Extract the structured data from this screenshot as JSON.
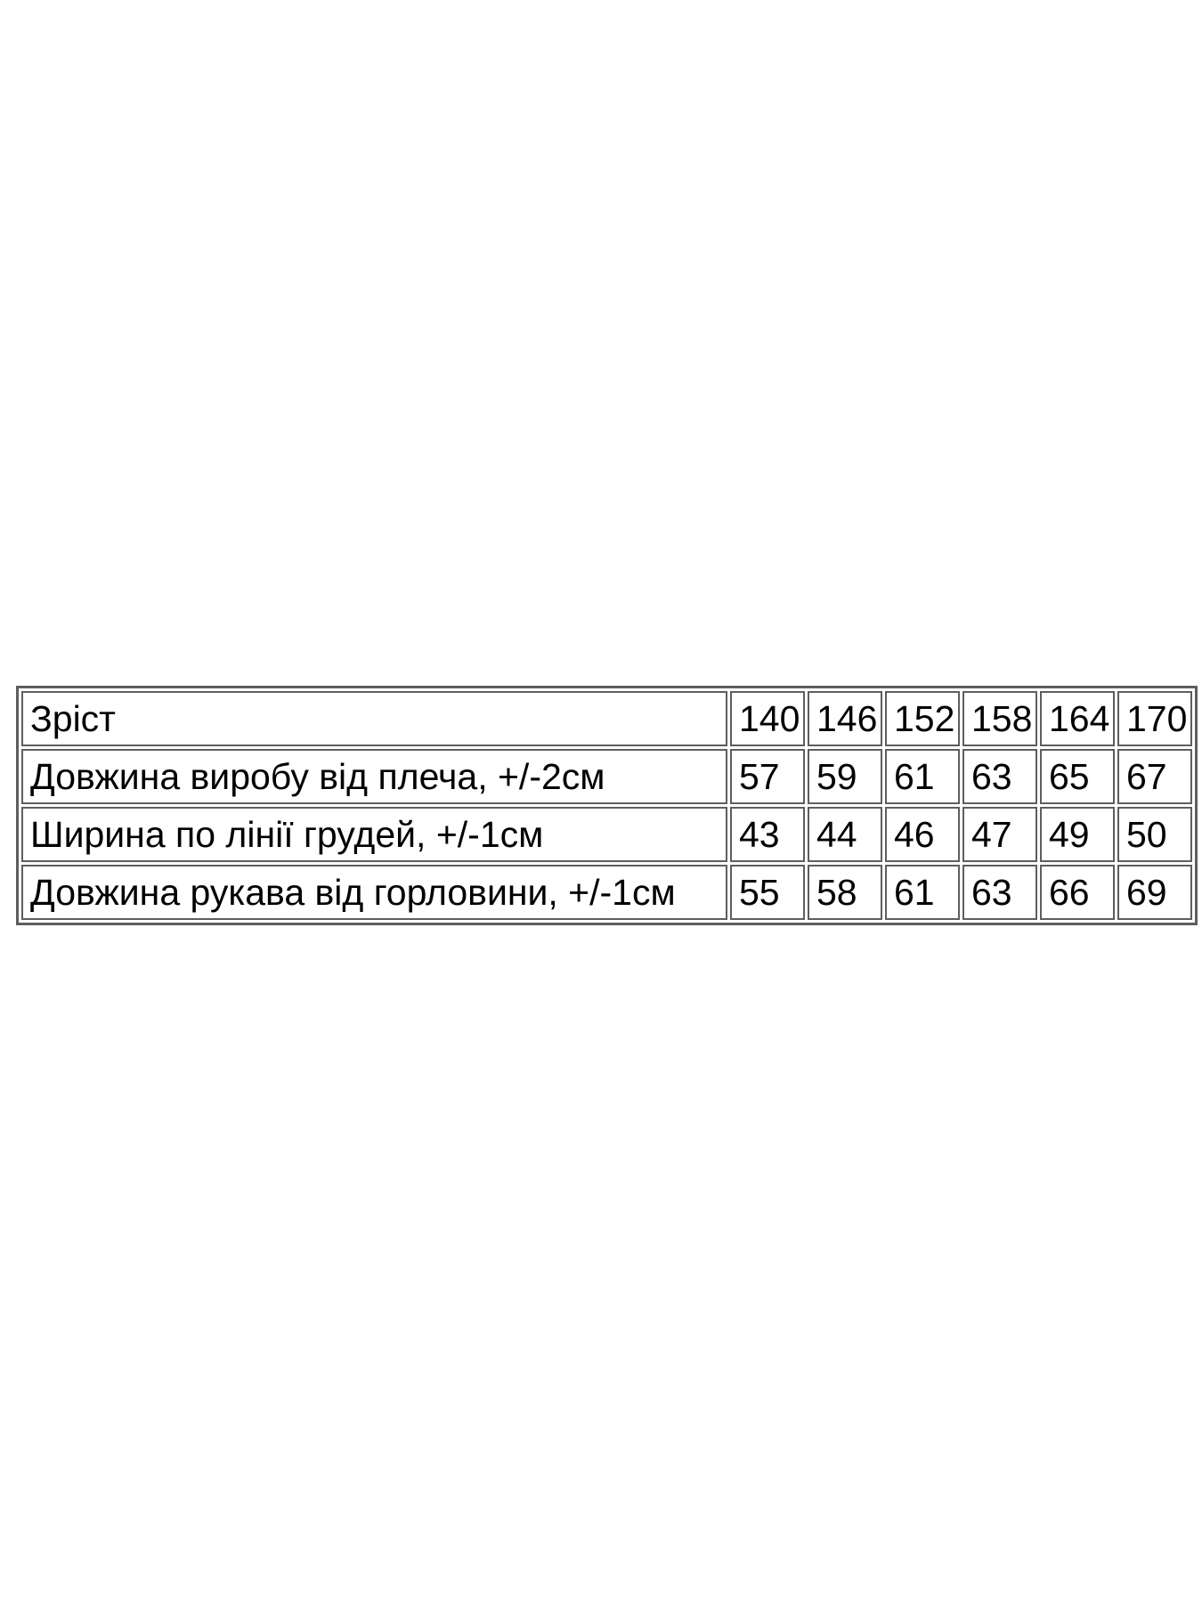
{
  "page": {
    "background_color": "#ffffff",
    "text_color": "#000000",
    "table_border_color": "#5e5e5e"
  },
  "size_table": {
    "header": {
      "label": "Зріст",
      "values": [
        "140",
        "146",
        "152",
        "158",
        "164",
        "170"
      ]
    },
    "rows": [
      {
        "label": "Довжина виробу від плеча, +/-2см",
        "values": [
          "57",
          "59",
          "61",
          "63",
          "65",
          "67"
        ]
      },
      {
        "label": "Ширина по лінії грудей, +/-1см",
        "values": [
          "43",
          "44",
          "46",
          "47",
          "49",
          "50"
        ]
      },
      {
        "label": "Довжина рукава від горловини, +/-1см",
        "values": [
          "55",
          "58",
          "61",
          "63",
          "66",
          "69"
        ]
      }
    ]
  }
}
